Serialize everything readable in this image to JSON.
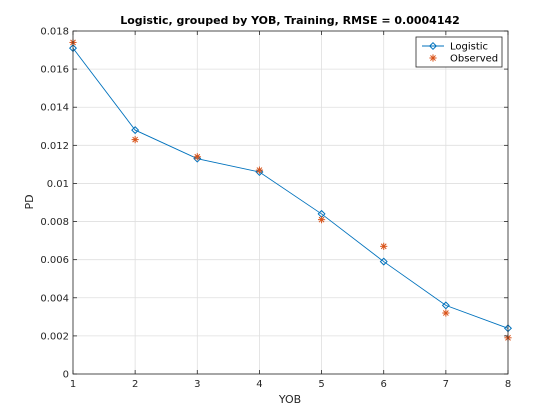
{
  "chart_data": {
    "type": "line",
    "title": "Logistic, grouped by YOB, Training, RMSE = 0.0004142",
    "xlabel": "YOB",
    "ylabel": "PD",
    "xlim": [
      1,
      8
    ],
    "ylim": [
      0,
      0.018
    ],
    "xticks": [
      "1",
      "2",
      "3",
      "4",
      "5",
      "6",
      "7",
      "8"
    ],
    "yticks": [
      "0",
      "0.002",
      "0.004",
      "0.006",
      "0.008",
      "0.01",
      "0.012",
      "0.014",
      "0.016",
      "0.018"
    ],
    "grid": true,
    "legend_position": "top-right",
    "x": [
      1,
      2,
      3,
      4,
      5,
      6,
      7,
      8
    ],
    "series": [
      {
        "name": "Logistic",
        "style": "line-diamond",
        "color": "#0072BD",
        "values": [
          0.0171,
          0.0128,
          0.0113,
          0.0106,
          0.0084,
          0.0059,
          0.0036,
          0.0024
        ]
      },
      {
        "name": "Observed",
        "style": "asterisk",
        "color": "#D95319",
        "values": [
          0.0174,
          0.0123,
          0.0114,
          0.0107,
          0.0081,
          0.0067,
          0.0032,
          0.0019
        ]
      }
    ]
  }
}
